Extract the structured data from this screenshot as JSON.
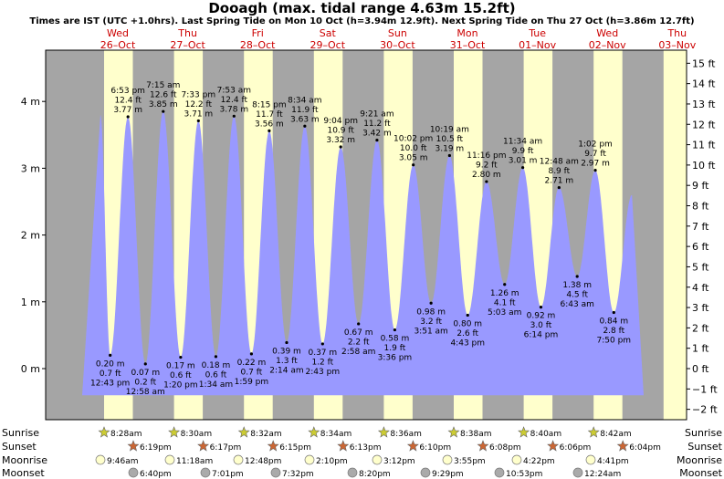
{
  "title": "Dooagh (max. tidal range 4.63m 15.2ft)",
  "subtitle": "Times are IST (UTC +1.0hrs). Last Spring Tide on Mon 10 Oct (h=3.94m 12.9ft). Next Spring Tide on Thu 27 Oct (h=3.86m 12.7ft)",
  "days": [
    {
      "dow": "Wed",
      "date": "26–Oct"
    },
    {
      "dow": "Thu",
      "date": "27–Oct"
    },
    {
      "dow": "Fri",
      "date": "28–Oct"
    },
    {
      "dow": "Sat",
      "date": "29–Oct"
    },
    {
      "dow": "Sun",
      "date": "30–Oct"
    },
    {
      "dow": "Mon",
      "date": "31–Oct"
    },
    {
      "dow": "Tue",
      "date": "01–Nov"
    },
    {
      "dow": "Wed",
      "date": "02–Nov"
    },
    {
      "dow": "Thu",
      "date": "03–Nov"
    }
  ],
  "colors": {
    "night": "#a5a5a5",
    "day": "#ffffcc",
    "water": "#9999ff",
    "dayLabel": "#cc0000",
    "sunrise": "#cccc33",
    "sunset": "#cc6633",
    "moonrise": "#ffffcc",
    "moonset": "#aaaaaa"
  },
  "chart_data": {
    "type": "area",
    "ylim_m": [
      -0.4,
      4.25
    ],
    "ylabel_left": [
      "0 m",
      "1 m",
      "2 m",
      "3 m",
      "4 m"
    ],
    "ylabel_right": [
      "−2 ft",
      "−1 ft",
      "0 ft",
      "1 ft",
      "2 ft",
      "3 ft",
      "4 ft",
      "5 ft",
      "6 ft",
      "7 ft",
      "8 ft",
      "9 ft",
      "10 ft",
      "11 ft",
      "12 ft",
      "13 ft",
      "14 ft",
      "15 ft"
    ],
    "tides": [
      {
        "t": 0.0,
        "h": 3.8,
        "type": "high",
        "lines": []
      },
      {
        "t": 0.28,
        "h": 0.2,
        "type": "low",
        "lines": [
          "0.20 m",
          "0.7 ft",
          "12:43 pm"
        ]
      },
      {
        "t": 0.79,
        "h": 3.77,
        "type": "high",
        "lines": [
          "6:53 pm",
          "12.4 ft",
          "3.77 m"
        ]
      },
      {
        "t": 1.29,
        "h": 0.07,
        "type": "low",
        "lines": [
          "0.07 m",
          "0.2 ft",
          "12:58 am"
        ]
      },
      {
        "t": 1.8,
        "h": 3.85,
        "type": "high",
        "lines": [
          "7:15 am",
          "12.6 ft",
          "3.85 m"
        ]
      },
      {
        "t": 2.3,
        "h": 0.17,
        "type": "low",
        "lines": [
          "0.17 m",
          "0.6 ft",
          "1:20 pm"
        ]
      },
      {
        "t": 2.81,
        "h": 3.71,
        "type": "high",
        "lines": [
          "7:33 pm",
          "12.2 ft",
          "3.71 m"
        ]
      },
      {
        "t": 3.31,
        "h": 0.18,
        "type": "low",
        "lines": [
          "0.18 m",
          "0.6 ft",
          "1:34 am"
        ]
      },
      {
        "t": 3.83,
        "h": 3.78,
        "type": "high",
        "lines": [
          "7:53 am",
          "12.4 ft",
          "3.78 m"
        ]
      },
      {
        "t": 4.33,
        "h": 0.22,
        "type": "low",
        "lines": [
          "0.22 m",
          "0.7 ft",
          "1:59 pm"
        ]
      },
      {
        "t": 4.84,
        "h": 3.56,
        "type": "high",
        "lines": [
          "8:15 pm",
          "11.7 ft",
          "3.56 m"
        ]
      },
      {
        "t": 5.34,
        "h": 0.39,
        "type": "low",
        "lines": [
          "0.39 m",
          "1.3 ft",
          "2:14 am"
        ]
      },
      {
        "t": 5.86,
        "h": 3.63,
        "type": "high",
        "lines": [
          "8:34 am",
          "11.9 ft",
          "3.63 m"
        ]
      },
      {
        "t": 6.37,
        "h": 0.37,
        "type": "low",
        "lines": [
          "0.37 m",
          "1.2 ft",
          "2:43 pm"
        ]
      },
      {
        "t": 6.89,
        "h": 3.32,
        "type": "high",
        "lines": [
          "9:04 pm",
          "10.9 ft",
          "3.32 m"
        ]
      },
      {
        "t": 7.4,
        "h": 0.67,
        "type": "low",
        "lines": [
          "0.67 m",
          "2.2 ft",
          "2:58 am"
        ]
      },
      {
        "t": 7.93,
        "h": 3.42,
        "type": "high",
        "lines": [
          "9:21 am",
          "11.2 ft",
          "3.42 m"
        ]
      },
      {
        "t": 8.44,
        "h": 0.58,
        "type": "low",
        "lines": [
          "0.58 m",
          "1.9 ft",
          "3:36 pm"
        ]
      },
      {
        "t": 8.97,
        "h": 3.05,
        "type": "high",
        "lines": [
          "10:02 pm",
          "10.0 ft",
          "3.05 m"
        ]
      },
      {
        "t": 9.48,
        "h": 0.98,
        "type": "low",
        "lines": [
          "0.98 m",
          "3.2 ft",
          "3:51 am"
        ]
      },
      {
        "t": 10.01,
        "h": 3.19,
        "type": "high",
        "lines": [
          "10:19 am",
          "10.5 ft",
          "3.19 m"
        ]
      },
      {
        "t": 10.53,
        "h": 0.8,
        "type": "low",
        "lines": [
          "0.80 m",
          "2.6 ft",
          "4:43 pm"
        ]
      },
      {
        "t": 11.07,
        "h": 2.8,
        "type": "high",
        "lines": [
          "11:16 pm",
          "9.2 ft",
          "2.80 m"
        ]
      },
      {
        "t": 11.59,
        "h": 1.26,
        "type": "low",
        "lines": [
          "1.26 m",
          "4.1 ft",
          "5:03 am"
        ]
      },
      {
        "t": 12.11,
        "h": 3.01,
        "type": "high",
        "lines": [
          "11:34 am",
          "9.9 ft",
          "3.01 m"
        ]
      },
      {
        "t": 12.63,
        "h": 0.92,
        "type": "low",
        "lines": [
          "0.92 m",
          "3.0 ft",
          "6:14 pm"
        ]
      },
      {
        "t": 13.15,
        "h": 2.71,
        "type": "high",
        "lines": [
          "12:48 am",
          "8.9 ft",
          "2.71 m"
        ]
      },
      {
        "t": 13.67,
        "h": 1.38,
        "type": "low",
        "lines": [
          "1.38 m",
          "4.5 ft",
          "6:43 am"
        ]
      },
      {
        "t": 14.19,
        "h": 2.97,
        "type": "high",
        "lines": [
          "1:02 pm",
          "9.7 ft",
          "2.97 m"
        ]
      },
      {
        "t": 14.72,
        "h": 0.84,
        "type": "low",
        "lines": [
          "0.84 m",
          "2.8 ft",
          "7:50 pm"
        ]
      },
      {
        "t": 15.24,
        "h": 2.6,
        "type": "high",
        "lines": []
      }
    ]
  },
  "rows": {
    "labels": [
      "Sunrise",
      "Sunset",
      "Moonrise",
      "Moonset"
    ],
    "sunrise": [
      "8:28am",
      "8:30am",
      "8:32am",
      "8:34am",
      "8:36am",
      "8:38am",
      "8:40am",
      "8:42am"
    ],
    "sunset": [
      "6:19pm",
      "6:17pm",
      "6:15pm",
      "6:13pm",
      "6:10pm",
      "6:08pm",
      "6:06pm",
      "6:04pm"
    ],
    "moonrise": [
      "9:46am",
      "11:18am",
      "12:48pm",
      "2:10pm",
      "3:12pm",
      "3:55pm",
      "4:22pm",
      "4:41pm"
    ],
    "moonset": [
      "6:40pm",
      "7:01pm",
      "7:32pm",
      "8:20pm",
      "9:29pm",
      "10:53pm",
      "12:24am"
    ]
  }
}
